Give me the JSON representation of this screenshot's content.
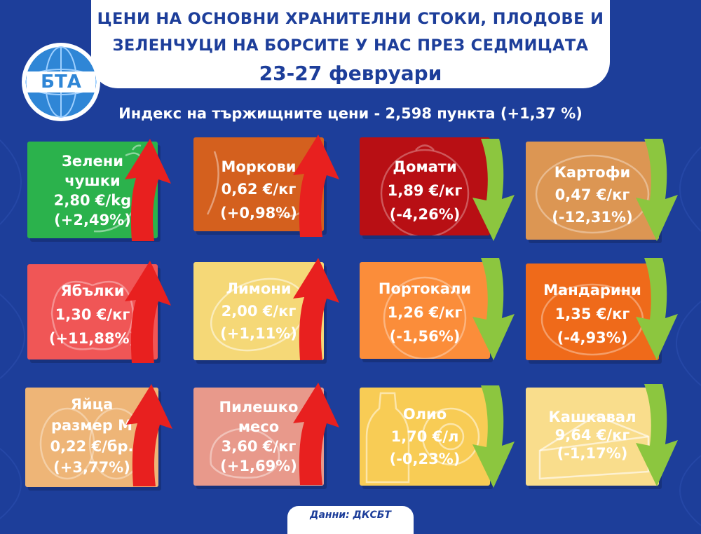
{
  "header": {
    "title_line1": "ЦЕНИ НА ОСНОВНИ ХРАНИТЕЛНИ СТОКИ, ПЛОДОВЕ И",
    "title_line2": "ЗЕЛЕНЧУЦИ НА БОРСИТЕ У НАС ПРЕЗ СЕДМИЦАТА",
    "date": "23-27 февруари",
    "logo_text": "БТА"
  },
  "index_line": "Индекс на тържищните цени - 2,598 пункта (+1,37 %)",
  "colors": {
    "background": "#1d3e9a",
    "up_arrow": "#e8201f",
    "down_arrow": "#8cc63f"
  },
  "products": [
    {
      "name": "Зелени чушки",
      "name_l1": "Зелени",
      "name_l2": "чушки",
      "price": "2,80 €/kg",
      "change": "(+2,49%)",
      "color": "#2bb24c",
      "icon": "pepper-icon",
      "trend": "up"
    },
    {
      "name": "Моркови",
      "price": "0,62 €/кг",
      "change": "(+0,98%)",
      "color": "#d4601e",
      "icon": "carrot-icon",
      "trend": "up"
    },
    {
      "name": "Домати",
      "price": "1,89 €/кг",
      "change": "(-4,26%)",
      "color": "#b80f14",
      "icon": "tomato-icon",
      "trend": "down"
    },
    {
      "name": "Картофи",
      "price": "0,47 €/кг",
      "change": "(-12,31%)",
      "color": "#dc9653",
      "icon": "potato-icon",
      "trend": "down"
    },
    {
      "name": "Ябълки",
      "price": "1,30 €/кг",
      "change": "(+11,88%)",
      "color": "#f05656",
      "icon": "apple-icon",
      "trend": "up"
    },
    {
      "name": "Лимони",
      "price": "2,00 €/кг",
      "change": "(+1,11%)",
      "color": "#f5d877",
      "icon": "lemon-icon",
      "trend": "up"
    },
    {
      "name": "Портокали",
      "price": "1,26 €/кг",
      "change": "(-1,56%)",
      "color": "#fb8d3a",
      "icon": "orange-icon",
      "trend": "down"
    },
    {
      "name": "Мандарини",
      "price": "1,35 €/кг",
      "change": "(-4,93%)",
      "color": "#ef6a1a",
      "icon": "mandarin-icon",
      "trend": "down"
    },
    {
      "name": "Яйца размер М",
      "name_l1": "Яйца",
      "name_l2": "размер М",
      "price": "0,22 €/бр.",
      "change": "(+3,77%)",
      "color": "#eeb577",
      "icon": "egg-icon",
      "trend": "up"
    },
    {
      "name": "Пилешко месо",
      "name_l1": "Пилешко",
      "name_l2": "месо",
      "price": "3,60 €/кг",
      "change": "(+1,69%)",
      "color": "#e8998b",
      "icon": "chicken-icon",
      "trend": "up"
    },
    {
      "name": "Олио",
      "price": "1,70 €/л",
      "change": "(-0,23%)",
      "color": "#f8cc55",
      "icon": "oil-bottle-icon",
      "trend": "down"
    },
    {
      "name": "Кашкавал",
      "price": "9,64 €/кг",
      "change": "(-1,17%)",
      "color": "#f9dd8c",
      "icon": "cheese-icon",
      "trend": "down"
    }
  ],
  "source": "Данни: ДКСБТ"
}
